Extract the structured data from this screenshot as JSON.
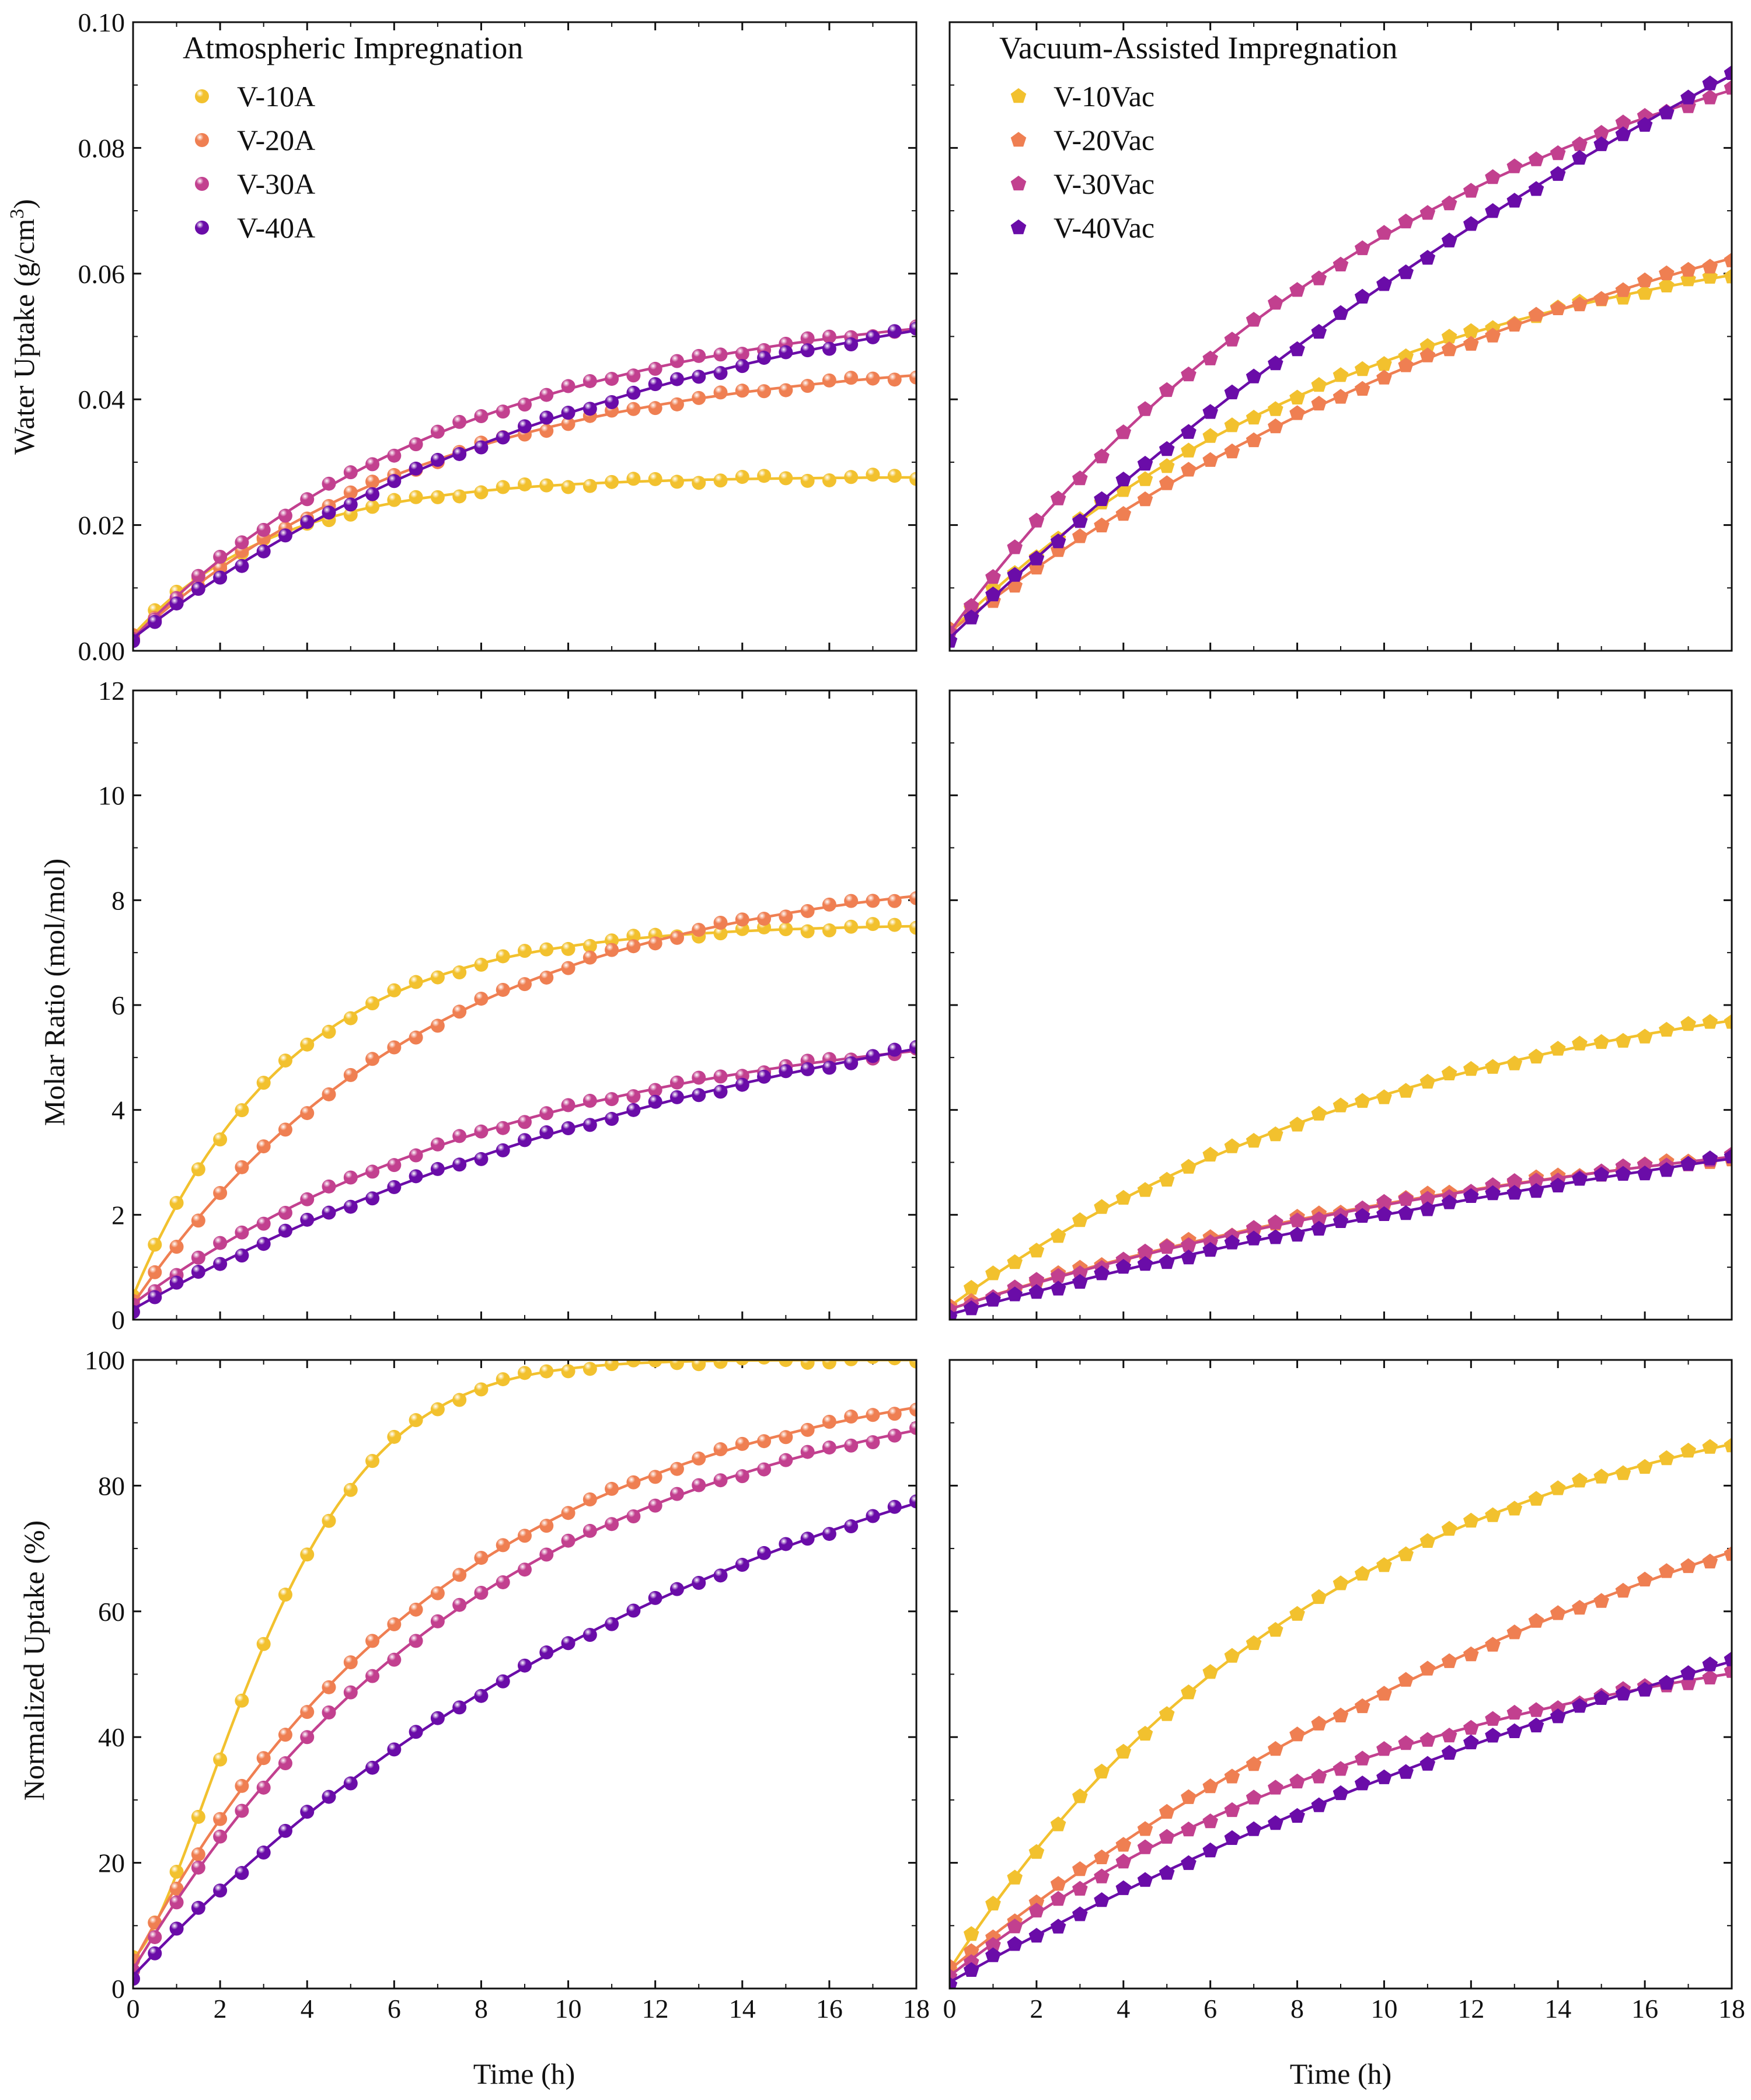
{
  "colors": {
    "V10": "#f2c12e",
    "V20": "#ef7f52",
    "V30": "#c2408f",
    "V40": "#6a0ca8"
  },
  "legends": {
    "left": {
      "title": "Atmospheric Impregnation",
      "marker": "sphere",
      "entries": [
        {
          "label": "V-10A",
          "color_key": "V10"
        },
        {
          "label": "V-20A",
          "color_key": "V20"
        },
        {
          "label": "V-30A",
          "color_key": "V30"
        },
        {
          "label": "V-40A",
          "color_key": "V40"
        }
      ]
    },
    "right": {
      "title": "Vacuum-Assisted Impregnation",
      "marker": "pentagon",
      "entries": [
        {
          "label": "V-10Vac",
          "color_key": "V10"
        },
        {
          "label": "V-20Vac",
          "color_key": "V20"
        },
        {
          "label": "V-30Vac",
          "color_key": "V30"
        },
        {
          "label": "V-40Vac",
          "color_key": "V40"
        }
      ]
    }
  },
  "axes": {
    "xlabel": "Time (h)",
    "x_ticks": [
      "0",
      "2",
      "4",
      "6",
      "8",
      "10",
      "12",
      "14",
      "16",
      "18"
    ],
    "rows": [
      {
        "ylabel_main": "Water Uptake (g/cm",
        "ylabel_sup": "3",
        "ylabel_end": ")",
        "y_ticks": [
          "0.00",
          "0.02",
          "0.04",
          "0.06",
          "0.08",
          "0.10"
        ]
      },
      {
        "ylabel_main": "Molar Ratio (mol/mol)",
        "ylabel_sup": "",
        "ylabel_end": "",
        "y_ticks": [
          "0",
          "2",
          "4",
          "6",
          "8",
          "10",
          "12"
        ]
      },
      {
        "ylabel_main": "Normalized Uptake (%)",
        "ylabel_sup": "",
        "ylabel_end": "",
        "y_ticks": [
          "0",
          "20",
          "40",
          "60",
          "80",
          "100"
        ]
      }
    ]
  },
  "chart_data": [
    {
      "type": "scatter",
      "panel": "top-left",
      "ylabel": "Water Uptake (g/cm3)",
      "xlabel": "",
      "xlim": [
        0,
        18
      ],
      "ylim": [
        0,
        0.1
      ],
      "legend": "top-left",
      "marker": "sphere",
      "fit_curves": true,
      "series": [
        {
          "name": "V-10A",
          "color_key": "V10",
          "model": {
            "kind": "exp",
            "a": 0.0025,
            "b": 0.0252,
            "k": 0.3
          }
        },
        {
          "name": "V-20A",
          "color_key": "V20",
          "model": {
            "kind": "exp",
            "a": 0.002,
            "b": 0.0455,
            "k": 0.14
          }
        },
        {
          "name": "V-30A",
          "color_key": "V30",
          "model": {
            "kind": "exp",
            "a": 0.002,
            "b": 0.0545,
            "k": 0.13
          }
        },
        {
          "name": "V-40A",
          "color_key": "V40",
          "model": {
            "kind": "exp",
            "a": 0.002,
            "b": 0.0625,
            "k": 0.085
          }
        }
      ]
    },
    {
      "type": "scatter",
      "panel": "top-right",
      "ylabel": "Water Uptake (g/cm3)",
      "xlabel": "",
      "xlim": [
        0,
        18
      ],
      "ylim": [
        0,
        0.1
      ],
      "legend": "top-left",
      "marker": "pentagon",
      "fit_curves": true,
      "series": [
        {
          "name": "V-10Vac",
          "color_key": "V10",
          "model": {
            "kind": "exp",
            "a": 0.003,
            "b": 0.068,
            "k": 0.1
          }
        },
        {
          "name": "V-20Vac",
          "color_key": "V20",
          "model": {
            "kind": "exp",
            "a": 0.003,
            "b": 0.09,
            "k": 0.06
          }
        },
        {
          "name": "V-30Vac",
          "color_key": "V30",
          "model": {
            "kind": "exp",
            "a": 0.003,
            "b": 0.11,
            "k": 0.085
          }
        },
        {
          "name": "V-40Vac",
          "color_key": "V40",
          "model": {
            "kind": "exp",
            "a": 0.002,
            "b": 0.2,
            "k": 0.033
          }
        }
      ]
    },
    {
      "type": "scatter",
      "panel": "middle-left",
      "ylabel": "Molar Ratio (mol/mol)",
      "xlabel": "",
      "xlim": [
        0,
        18
      ],
      "ylim": [
        0,
        12
      ],
      "marker": "sphere",
      "fit_curves": true,
      "series": [
        {
          "name": "V-10A",
          "color_key": "V10",
          "model": {
            "kind": "exp",
            "a": 0.45,
            "b": 7.1,
            "k": 0.28
          }
        },
        {
          "name": "V-20A",
          "color_key": "V20",
          "model": {
            "kind": "exp",
            "a": 0.3,
            "b": 8.4,
            "k": 0.145
          }
        },
        {
          "name": "V-30A",
          "color_key": "V30",
          "model": {
            "kind": "exp",
            "a": 0.3,
            "b": 5.6,
            "k": 0.11
          }
        },
        {
          "name": "V-40A",
          "color_key": "V40",
          "model": {
            "kind": "exp",
            "a": 0.2,
            "b": 7.2,
            "k": 0.065
          }
        }
      ]
    },
    {
      "type": "scatter",
      "panel": "middle-right",
      "ylabel": "Molar Ratio (mol/mol)",
      "xlabel": "",
      "xlim": [
        0,
        18
      ],
      "ylim": [
        0,
        12
      ],
      "marker": "pentagon",
      "fit_curves": true,
      "series": [
        {
          "name": "V-10Vac",
          "color_key": "V10",
          "model": {
            "kind": "exp",
            "a": 0.25,
            "b": 6.8,
            "k": 0.09
          }
        },
        {
          "name": "V-20Vac",
          "color_key": "V20",
          "model": {
            "kind": "exp",
            "a": 0.2,
            "b": 4.2,
            "k": 0.065
          }
        },
        {
          "name": "V-30Vac",
          "color_key": "V30",
          "model": {
            "kind": "exp",
            "a": 0.2,
            "b": 4.4,
            "k": 0.06
          }
        },
        {
          "name": "V-40Vac",
          "color_key": "V40",
          "model": {
            "kind": "exp",
            "a": 0.1,
            "b": 6.0,
            "k": 0.038
          }
        }
      ]
    },
    {
      "type": "scatter",
      "panel": "bottom-left",
      "ylabel": "Normalized Uptake (%)",
      "xlabel": "Time (h)",
      "xlim": [
        0,
        18
      ],
      "ylim": [
        0,
        100
      ],
      "marker": "sphere",
      "fit_curves": true,
      "series": [
        {
          "name": "V-10A",
          "color_key": "V10",
          "model": {
            "kind": "sig",
            "a": 5,
            "b": 95,
            "k": 0.27,
            "m": 1.45
          }
        },
        {
          "name": "V-20A",
          "color_key": "V20",
          "model": {
            "kind": "exp",
            "a": 4,
            "b": 97,
            "k": 0.135
          }
        },
        {
          "name": "V-30A",
          "color_key": "V30",
          "model": {
            "kind": "exp",
            "a": 3,
            "b": 97,
            "k": 0.12
          }
        },
        {
          "name": "V-40A",
          "color_key": "V40",
          "model": {
            "kind": "exp",
            "a": 2,
            "b": 105,
            "k": 0.07
          }
        }
      ]
    },
    {
      "type": "scatter",
      "panel": "bottom-right",
      "ylabel": "Normalized Uptake (%)",
      "xlabel": "Time (h)",
      "xlim": [
        0,
        18
      ],
      "ylim": [
        0,
        100
      ],
      "marker": "pentagon",
      "fit_curves": true,
      "series": [
        {
          "name": "V-10Vac",
          "color_key": "V10",
          "model": {
            "kind": "exp",
            "a": 3,
            "b": 97,
            "k": 0.11
          }
        },
        {
          "name": "V-20Vac",
          "color_key": "V20",
          "model": {
            "kind": "exp",
            "a": 3,
            "b": 112,
            "k": 0.05
          }
        },
        {
          "name": "V-30Vac",
          "color_key": "V30",
          "model": {
            "kind": "exp",
            "a": 2,
            "b": 60,
            "k": 0.09
          }
        },
        {
          "name": "V-40Vac",
          "color_key": "V40",
          "model": {
            "kind": "exp",
            "a": 1,
            "b": 105,
            "k": 0.037
          }
        }
      ]
    }
  ]
}
